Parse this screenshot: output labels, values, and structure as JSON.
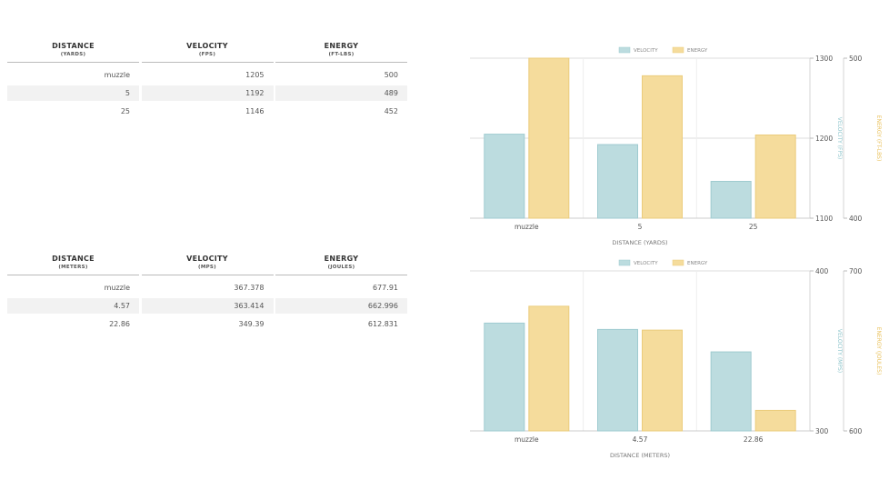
{
  "tables": [
    {
      "headers": [
        {
          "title": "DISTANCE",
          "unit": "(YARDS)"
        },
        {
          "title": "VELOCITY",
          "unit": "(FPS)"
        },
        {
          "title": "ENERGY",
          "unit": "(FT-LBS)"
        }
      ],
      "rows": [
        [
          "muzzle",
          "1205",
          "500"
        ],
        [
          "5",
          "1192",
          "489"
        ],
        [
          "25",
          "1146",
          "452"
        ]
      ]
    },
    {
      "headers": [
        {
          "title": "DISTANCE",
          "unit": "(METERS)"
        },
        {
          "title": "VELOCITY",
          "unit": "(MPS)"
        },
        {
          "title": "ENERGY",
          "unit": "(JOULES)"
        }
      ],
      "rows": [
        [
          "muzzle",
          "367.378",
          "677.91"
        ],
        [
          "4.57",
          "363.414",
          "662.996"
        ],
        [
          "22.86",
          "349.39",
          "612.831"
        ]
      ]
    }
  ],
  "colors": {
    "velocity_fill": "#bcdcdf",
    "velocity_stroke": "#9fcbd0",
    "energy_fill": "#f5dc9c",
    "energy_stroke": "#ebcc7c",
    "velocity_axis": "#8cc4cb",
    "energy_axis": "#e8bf56"
  },
  "chart_data": [
    {
      "type": "bar",
      "categories": [
        "muzzle",
        "5",
        "25"
      ],
      "xlabel": "DISTANCE (YARDS)",
      "series": [
        {
          "name": "VELOCITY",
          "axis": "left",
          "values": [
            1205,
            1192,
            1146
          ]
        },
        {
          "name": "ENERGY",
          "axis": "right",
          "values": [
            500,
            489,
            452
          ]
        }
      ],
      "y_left": {
        "label": "VELOCITY (FPS)",
        "range": [
          1100,
          1300
        ],
        "ticks": [
          "1100",
          "1200",
          "1300"
        ]
      },
      "y_right": {
        "label": "ENERGY (FT-LBS)",
        "range": [
          400,
          500
        ],
        "ticks": [
          "400",
          "500"
        ]
      },
      "legend": "top-center",
      "grid": true
    },
    {
      "type": "bar",
      "categories": [
        "muzzle",
        "4.57",
        "22.86"
      ],
      "xlabel": "DISTANCE (METERS)",
      "series": [
        {
          "name": "VELOCITY",
          "axis": "left",
          "values": [
            367.378,
            363.414,
            349.39
          ]
        },
        {
          "name": "ENERGY",
          "axis": "right",
          "values": [
            677.91,
            662.996,
            612.831
          ]
        }
      ],
      "y_left": {
        "label": "VELOCITY (MPS)",
        "range": [
          300,
          400
        ],
        "ticks": [
          "300",
          "400"
        ]
      },
      "y_right": {
        "label": "ENERGY (JOULES)",
        "range": [
          600,
          700
        ],
        "ticks": [
          "600",
          "700"
        ]
      },
      "legend": "top-center",
      "grid": true
    }
  ]
}
